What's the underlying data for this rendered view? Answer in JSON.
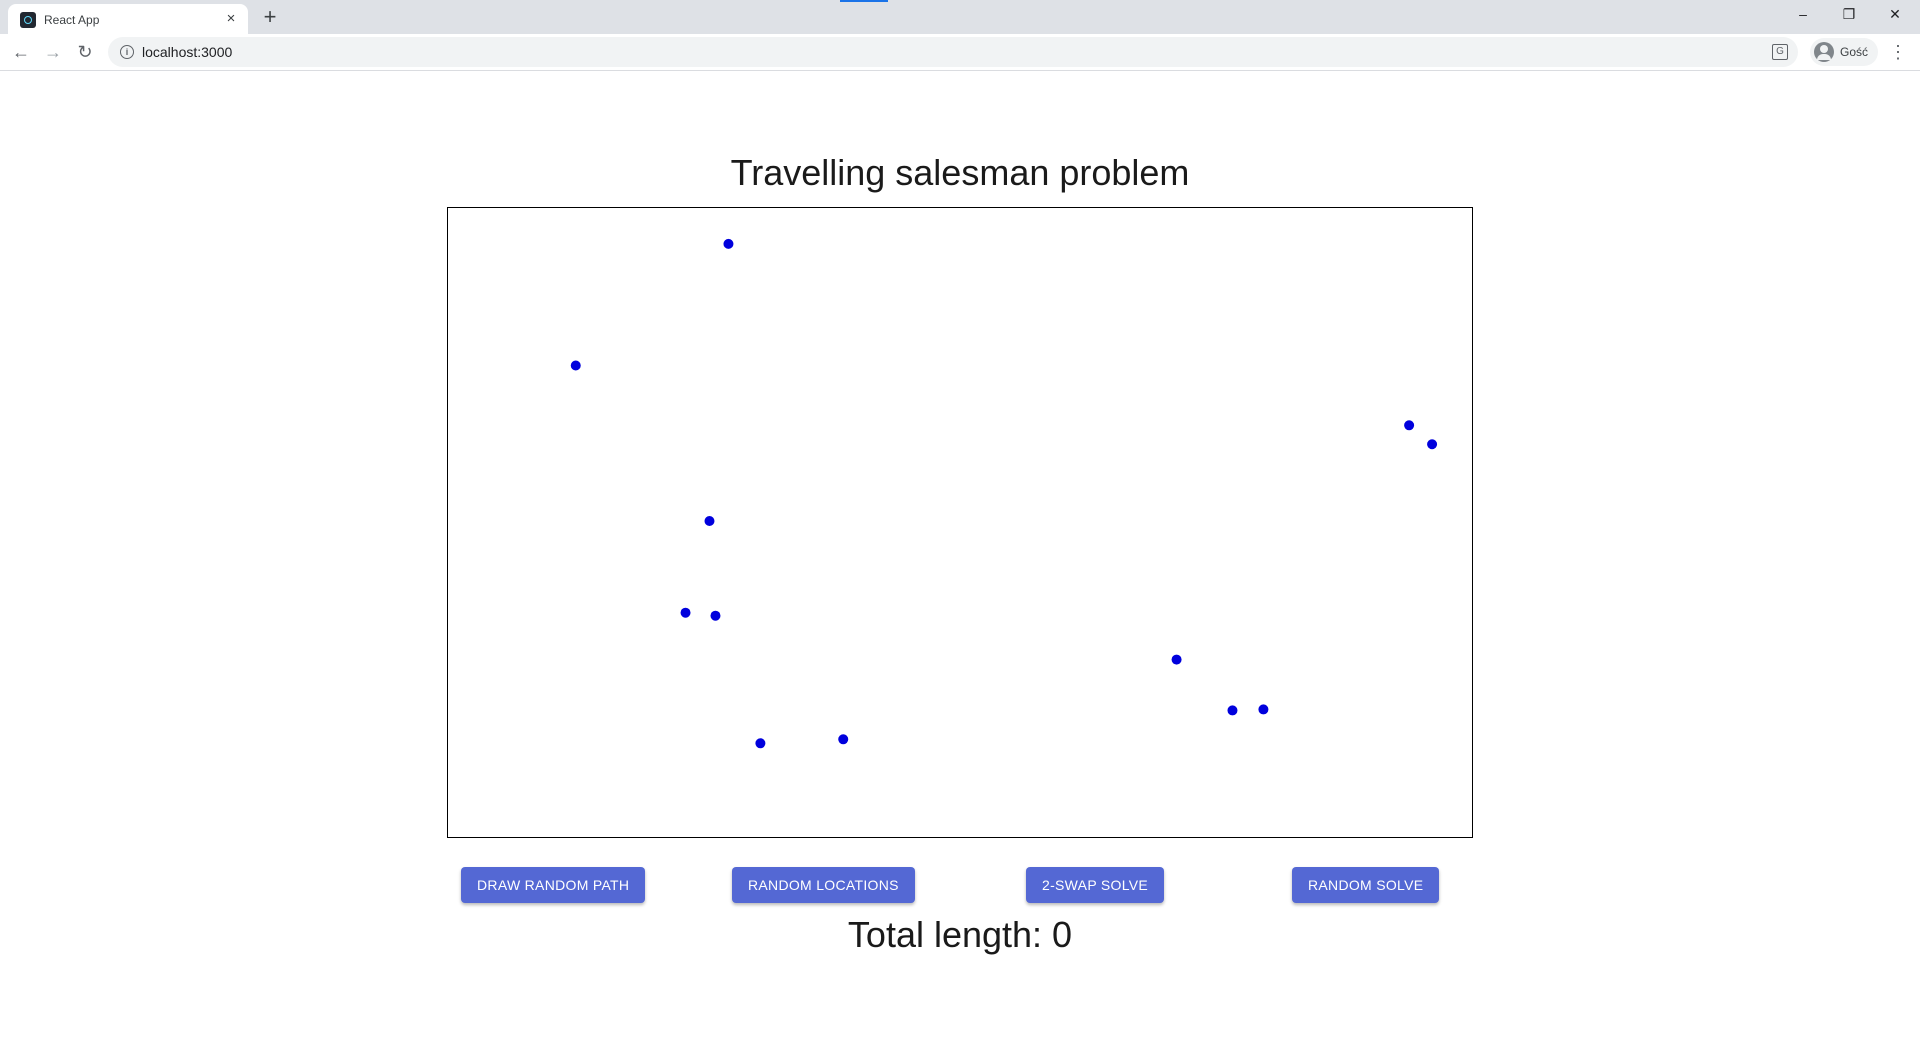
{
  "browser": {
    "tab": {
      "title": "React App"
    },
    "toolbar": {
      "url": "localhost:3000",
      "profile_name": "Gość"
    },
    "window_controls": {
      "minimize": "–",
      "restore": "❐",
      "close": "✕"
    }
  },
  "page": {
    "title": "Travelling salesman problem",
    "buttons": [
      {
        "label": "DRAW RANDOM PATH"
      },
      {
        "label": "RANDOM LOCATIONS"
      },
      {
        "label": "2-SWAP SOLVE"
      },
      {
        "label": "RANDOM SOLVE"
      }
    ],
    "total_length": "Total length: 0"
  },
  "colors": {
    "accent": "#5468d4",
    "city_point": "#0000dd"
  },
  "chart_data": {
    "type": "scatter",
    "title": "",
    "xlabel": "",
    "ylabel": "",
    "xlim": [
      0,
      1026
    ],
    "ylim": [
      0,
      631
    ],
    "y_axis": "down",
    "grid": false,
    "points": [
      {
        "x": 281,
        "y": 36
      },
      {
        "x": 128,
        "y": 158
      },
      {
        "x": 963,
        "y": 218
      },
      {
        "x": 986,
        "y": 237
      },
      {
        "x": 262,
        "y": 314
      },
      {
        "x": 238,
        "y": 406
      },
      {
        "x": 268,
        "y": 409
      },
      {
        "x": 730,
        "y": 453
      },
      {
        "x": 786,
        "y": 504
      },
      {
        "x": 817,
        "y": 503
      },
      {
        "x": 313,
        "y": 537
      },
      {
        "x": 396,
        "y": 533
      }
    ]
  }
}
